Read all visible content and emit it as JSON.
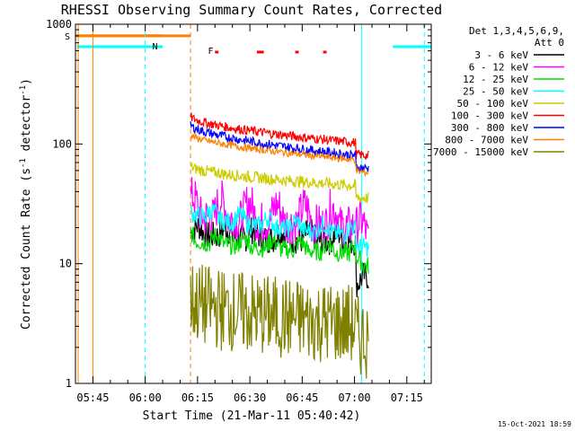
{
  "chart_data": {
    "type": "line",
    "title": "RHESSI Observing Summary Count Rates, Corrected",
    "xlabel": "Start Time (21-Mar-11 05:40:42)",
    "ylabel_main": "Corrected Count Rate (s",
    "ylabel_sup1": "-1",
    "ylabel_mid": " detector",
    "ylabel_sup2": "-1",
    "ylabel_end": ")",
    "yscale": "log",
    "ylim": [
      1,
      1000
    ],
    "xlim": [
      "05:40",
      "07:22"
    ],
    "x_ticks": [
      "05:45",
      "06:00",
      "06:15",
      "06:30",
      "06:45",
      "07:00",
      "07:15"
    ],
    "y_ticks": [
      "1",
      "10",
      "100",
      "1000"
    ],
    "legend_title": [
      "Det 1,3,4,5,6,9,",
      "Att 0"
    ],
    "legend_position": "right",
    "footer": "15-Oct-2021 18:59",
    "flags": {
      "S": "S",
      "N": "N",
      "F": "F"
    },
    "series": [
      {
        "name": "3 - 6 keV",
        "color": "#000000",
        "start": 18,
        "end": 15,
        "noise": 0.12
      },
      {
        "name": "6 - 12 keV",
        "color": "#ff00ff",
        "start": 26,
        "end": 20,
        "noise": 0.18
      },
      {
        "name": "12 - 25 keV",
        "color": "#00dd00",
        "start": 16,
        "end": 12,
        "noise": 0.08
      },
      {
        "name": "25 - 50 keV",
        "color": "#00ffff",
        "start": 27,
        "end": 17,
        "noise": 0.08
      },
      {
        "name": "50 - 100 keV",
        "color": "#cccc00",
        "start": 65,
        "end": 44,
        "noise": 0.05
      },
      {
        "name": "100 - 300 keV",
        "color": "#ff0000",
        "start": 170,
        "end": 100,
        "noise": 0.04
      },
      {
        "name": "300 - 800 keV",
        "color": "#0000ff",
        "start": 145,
        "end": 78,
        "noise": 0.04
      },
      {
        "name": "800 - 7000 keV",
        "color": "#ff8000",
        "start": 120,
        "end": 72,
        "noise": 0.03
      },
      {
        "name": "7000 - 15000 keV",
        "color": "#808000",
        "start": 5,
        "end": 3,
        "noise": 0.35
      }
    ],
    "saa_level": 800,
    "night_level": 650
  }
}
